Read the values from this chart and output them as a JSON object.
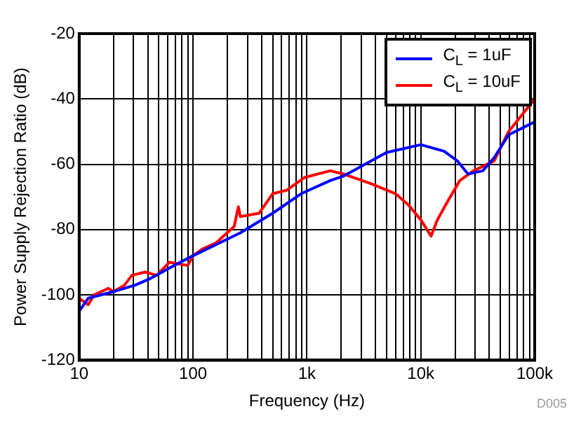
{
  "chart_data": {
    "type": "line",
    "xlabel": "Frequency (Hz)",
    "ylabel": "Power Supply Rejection Ratio (dB)",
    "log": "x",
    "grid": true,
    "legend": "top right",
    "marker": "none",
    "line_style": "solid",
    "annotations": [
      "D005"
    ],
    "xlim": [
      10,
      100000
    ],
    "ylim": [
      -120,
      -20
    ],
    "xticks": [
      10,
      {
        "value": 20,
        "label": null
      },
      {
        "value": 30,
        "label": null
      },
      {
        "value": 40,
        "label": null
      },
      {
        "value": 50,
        "label": null
      },
      {
        "value": 60,
        "label": null
      },
      {
        "value": 70,
        "label": null
      },
      {
        "value": 80,
        "label": null
      },
      {
        "value": 90,
        "label": null
      },
      100,
      {
        "value": 200,
        "label": null
      },
      {
        "value": 300,
        "label": null
      },
      {
        "value": 400,
        "label": null
      },
      {
        "value": 500,
        "label": null
      },
      {
        "value": 600,
        "label": null
      },
      {
        "value": 700,
        "label": null
      },
      {
        "value": 800,
        "label": null
      },
      {
        "value": 900,
        "label": null
      },
      {
        "value": 1000,
        "label": "1k"
      },
      {
        "value": 2000,
        "label": null
      },
      {
        "value": 3000,
        "label": null
      },
      {
        "value": 4000,
        "label": null
      },
      {
        "value": 5000,
        "label": null
      },
      {
        "value": 6000,
        "label": null
      },
      {
        "value": 7000,
        "label": null
      },
      {
        "value": 8000,
        "label": null
      },
      {
        "value": 9000,
        "label": null
      },
      {
        "value": 10000,
        "label": "10k"
      },
      {
        "value": 20000,
        "label": null
      },
      {
        "value": 30000,
        "label": null
      },
      {
        "value": 40000,
        "label": null
      },
      {
        "value": 50000,
        "label": null
      },
      {
        "value": 60000,
        "label": null
      },
      {
        "value": 70000,
        "label": null
      },
      {
        "value": 80000,
        "label": null
      },
      {
        "value": 90000,
        "label": null
      },
      {
        "value": 100000,
        "label": "100k"
      }
    ],
    "yticks": [
      -120,
      -100,
      -80,
      -60,
      -40,
      -20
    ],
    "series": [
      {
        "name": "C$_{L}$ = 1uF",
        "color": "#0000ff",
        "x": [
          10,
          12,
          20,
          31,
          42,
          68,
          100,
          260,
          500,
          890,
          1600,
          2100,
          5000,
          10000,
          16000,
          21000,
          26000,
          35000,
          44000,
          59000,
          100000
        ],
        "values": [
          -105,
          -101,
          -99,
          -97,
          -95,
          -91,
          -88,
          -81,
          -75,
          -69,
          -65,
          -63.6,
          -56.4,
          -54,
          -56,
          -59,
          -63,
          -62,
          -58,
          -51,
          -47
        ]
      },
      {
        "name": "C$_{L}$ = 10uF",
        "color": "#ff0000",
        "x": [
          10,
          12,
          13.5,
          18,
          20,
          25,
          29,
          38,
          48,
          62,
          90,
          100,
          120,
          160,
          230,
          250,
          260,
          380,
          500,
          660,
          960,
          1600,
          2100,
          3700,
          6000,
          7800,
          10000,
          12300,
          14000,
          16800,
          22000,
          29000,
          44000,
          59000,
          100000
        ],
        "values": [
          -101,
          -103,
          -100,
          -98,
          -99,
          -97,
          -94,
          -93,
          -94,
          -90,
          -91,
          -88,
          -86,
          -84,
          -79,
          -73,
          -76,
          -75,
          -69,
          -68,
          -64,
          -62,
          -63,
          -66,
          -69,
          -72.5,
          -77,
          -82,
          -77,
          -72,
          -65,
          -62,
          -59,
          -50,
          -40
        ]
      }
    ]
  }
}
